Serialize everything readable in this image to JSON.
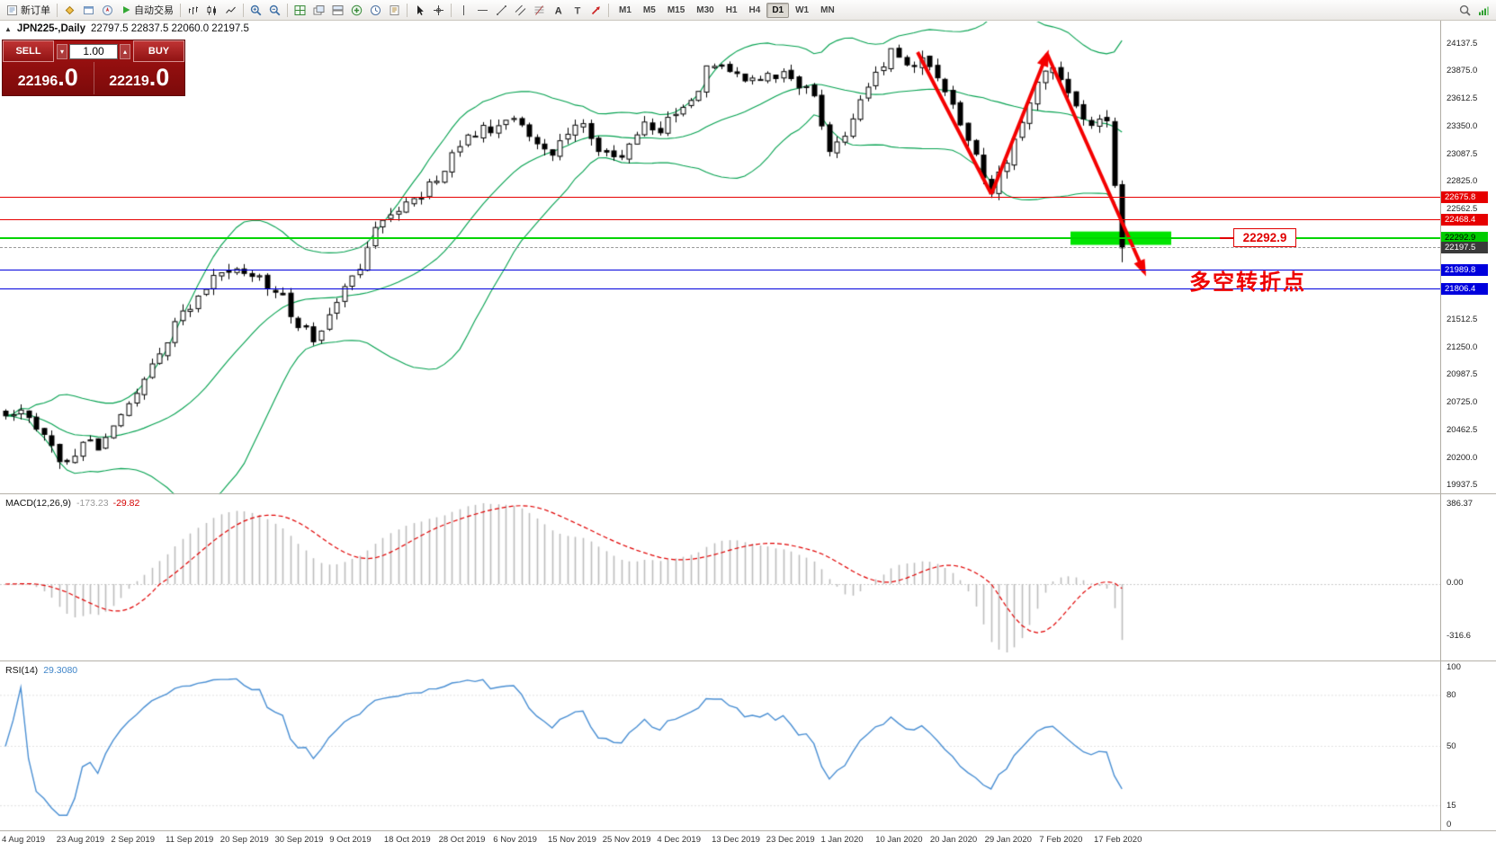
{
  "toolbar": {
    "new_order_label": "新订单",
    "auto_trading_label": "自动交易",
    "timeframes": [
      "M1",
      "M5",
      "M15",
      "M30",
      "H1",
      "H4",
      "D1",
      "W1",
      "MN"
    ],
    "active_timeframe": "D1"
  },
  "chart": {
    "title": "JPN225-,Daily",
    "ohlc": "22797.5 22837.5 22060.0 22197.5"
  },
  "trade_panel": {
    "sell_label": "SELL",
    "buy_label": "BUY",
    "volume": "1.00",
    "sell_price_main": "22196",
    "sell_price_pips": ".0",
    "buy_price_main": "22219",
    "buy_price_pips": ".0"
  },
  "levels": [
    {
      "price": 22675.8,
      "color": "#e60000",
      "width": 1
    },
    {
      "price": 22468.4,
      "color": "#e60000",
      "width": 1
    },
    {
      "price": 22292.9,
      "color": "#00d400",
      "width": 2,
      "text_color": "#000000",
      "badge_color": "#00cc00"
    },
    {
      "price": 21989.8,
      "color": "#0000dd",
      "width": 1
    },
    {
      "price": 21806.4,
      "color": "#0000dd",
      "width": 1
    }
  ],
  "current_price": {
    "price": 22197.5,
    "line_color": "#9a9a9a",
    "badge_color": "#3a3a3a"
  },
  "price_axis_ticks": [
    24137.5,
    23875.0,
    23612.5,
    23350.0,
    23087.5,
    22825.0,
    22562.5,
    21512.5,
    21250.0,
    20987.5,
    20725.0,
    20462.5,
    20200.0,
    19937.5
  ],
  "date_axis": [
    "4 Aug 2019",
    "23 Aug 2019",
    "2 Sep 2019",
    "11 Sep 2019",
    "20 Sep 2019",
    "30 Sep 2019",
    "9 Oct 2019",
    "18 Oct 2019",
    "28 Oct 2019",
    "6 Nov 2019",
    "15 Nov 2019",
    "25 Nov 2019",
    "4 Dec 2019",
    "13 Dec 2019",
    "23 Dec 2019",
    "1 Jan 2020",
    "10 Jan 2020",
    "20 Jan 2020",
    "29 Jan 2020",
    "7 Feb 2020",
    "17 Feb 2020"
  ],
  "macd": {
    "name": "MACD(12,26,9)",
    "main_value": "-173.23",
    "signal_value": "-29.82",
    "scale": [
      "386.37",
      "0.00",
      "-316.6"
    ]
  },
  "rsi": {
    "name": "RSI(14)",
    "value": "29.3080",
    "scale": [
      "100",
      "80",
      "50",
      "15",
      "0"
    ]
  },
  "annotations": {
    "note_text": "多空转折点",
    "note_color": "#ee0000",
    "callout_label": "22292.9"
  },
  "chart_data": {
    "type": "candlestick",
    "symbol": "JPN225-",
    "period": "Daily",
    "ohlc_display": {
      "open": 22797.5,
      "high": 22837.5,
      "low": 22060.0,
      "close": 22197.5
    },
    "ylim": [
      19855,
      24245
    ],
    "candle_count": 146,
    "close_anchors": [
      [
        0,
        20600
      ],
      [
        2,
        20680
      ],
      [
        4,
        20520
      ],
      [
        6,
        20280
      ],
      [
        8,
        20140
      ],
      [
        10,
        20380
      ],
      [
        12,
        20300
      ],
      [
        14,
        20520
      ],
      [
        16,
        20700
      ],
      [
        18,
        20950
      ],
      [
        20,
        21200
      ],
      [
        22,
        21470
      ],
      [
        25,
        21760
      ],
      [
        28,
        22010
      ],
      [
        31,
        21920
      ],
      [
        34,
        21860
      ],
      [
        36,
        21720
      ],
      [
        38,
        21470
      ],
      [
        40,
        21340
      ],
      [
        42,
        21520
      ],
      [
        44,
        21780
      ],
      [
        46,
        22030
      ],
      [
        48,
        22380
      ],
      [
        50,
        22520
      ],
      [
        52,
        22620
      ],
      [
        54,
        22720
      ],
      [
        56,
        22870
      ],
      [
        58,
        23080
      ],
      [
        60,
        23260
      ],
      [
        63,
        23330
      ],
      [
        65,
        23460
      ],
      [
        67,
        23390
      ],
      [
        69,
        23160
      ],
      [
        71,
        23110
      ],
      [
        73,
        23310
      ],
      [
        75,
        23390
      ],
      [
        77,
        23160
      ],
      [
        79,
        23010
      ],
      [
        81,
        23210
      ],
      [
        83,
        23360
      ],
      [
        85,
        23310
      ],
      [
        87,
        23460
      ],
      [
        89,
        23560
      ],
      [
        91,
        23910
      ],
      [
        93,
        23960
      ],
      [
        95,
        23810
      ],
      [
        97,
        23760
      ],
      [
        99,
        23810
      ],
      [
        101,
        23860
      ],
      [
        103,
        23760
      ],
      [
        105,
        23660
      ],
      [
        107,
        23110
      ],
      [
        109,
        23260
      ],
      [
        111,
        23560
      ],
      [
        113,
        23860
      ],
      [
        115,
        24060
      ],
      [
        117,
        23910
      ],
      [
        119,
        24010
      ],
      [
        121,
        23860
      ],
      [
        123,
        23610
      ],
      [
        125,
        23210
      ],
      [
        127,
        22870
      ],
      [
        128,
        22730
      ],
      [
        130,
        23010
      ],
      [
        132,
        23360
      ],
      [
        134,
        23810
      ],
      [
        136,
        23910
      ],
      [
        138,
        23710
      ],
      [
        140,
        23420
      ],
      [
        141,
        23360
      ],
      [
        142,
        23430
      ],
      [
        143,
        23390
      ],
      [
        144,
        22780
      ],
      [
        145,
        22197.5
      ]
    ],
    "last_candle": {
      "open": 22797.5,
      "high": 22837.5,
      "low": 22060.0,
      "close": 22197.5
    },
    "indicators": [
      {
        "type": "bollinger",
        "period": 20,
        "deviation": 2,
        "color": "#00A04E"
      },
      {
        "type": "macd",
        "fast": 12,
        "slow": 26,
        "signal": 9,
        "main": -173.23,
        "signal_value": -29.82,
        "histogram_color": "#bdbdbd",
        "signal_color": "#e00000"
      },
      {
        "type": "rsi",
        "period": 14,
        "value": 29.308,
        "color": "#4a8fd3"
      }
    ],
    "annotations": {
      "arrows": [
        {
          "pts": [
            [
              1020,
              58
            ],
            [
              1102,
              216
            ]
          ],
          "arrowhead": false,
          "color": "#f40000"
        },
        {
          "pts": [
            [
              1102,
              216
            ],
            [
              1164,
              60
            ]
          ],
          "arrowhead": true,
          "color": "#f40000"
        },
        {
          "pts": [
            [
              1164,
              60
            ],
            [
              1272,
              303
            ]
          ],
          "arrowhead": true,
          "color": "#f40000"
        }
      ],
      "highlight_rect": {
        "x": 1190,
        "width": 112,
        "price_top": 22352,
        "price_bottom": 22225,
        "color": "#00e400"
      }
    }
  }
}
